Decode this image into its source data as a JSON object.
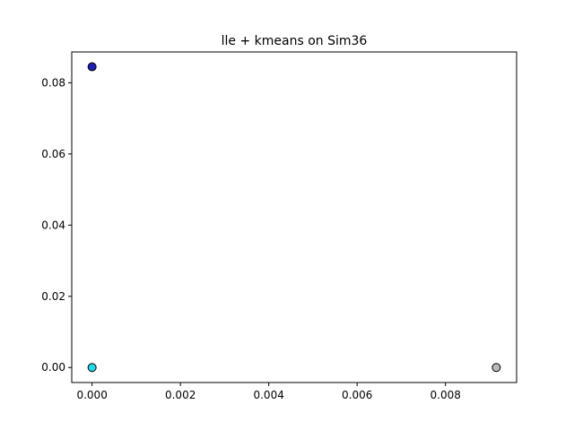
{
  "chart_data": {
    "type": "scatter",
    "title": "lle + kmeans on Sim36",
    "xlabel": "",
    "ylabel": "",
    "xlim": [
      -0.00046,
      0.00961
    ],
    "ylim": [
      -0.00422,
      0.08866
    ],
    "x_ticks": [
      0.0,
      0.002,
      0.004,
      0.006,
      0.008
    ],
    "x_tick_labels": [
      "0.000",
      "0.002",
      "0.004",
      "0.006",
      "0.008"
    ],
    "y_ticks": [
      0.0,
      0.02,
      0.04,
      0.06,
      0.08
    ],
    "y_tick_labels": [
      "0.00",
      "0.02",
      "0.04",
      "0.06",
      "0.08"
    ],
    "grid": false,
    "series": [
      {
        "color": "#1f1fb4",
        "points": [
          [
            0.0,
            0.0845
          ]
        ]
      },
      {
        "color": "#22d8e8",
        "points": [
          [
            0.0,
            0.0
          ]
        ]
      },
      {
        "color": "#b8b8b8",
        "points": [
          [
            0.00915,
            0.0
          ]
        ]
      }
    ]
  }
}
